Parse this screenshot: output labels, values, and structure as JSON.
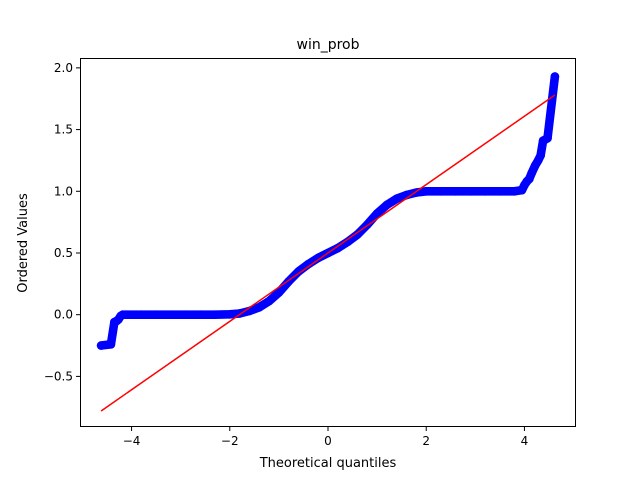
{
  "chart_data": {
    "type": "scatter",
    "title": "win_prob",
    "xlabel": "Theoretical quantiles",
    "ylabel": "Ordered Values",
    "xlim": [
      -5.05,
      5.05
    ],
    "ylim": [
      -0.91,
      2.08
    ],
    "xticks": [
      -4,
      -2,
      0,
      2,
      4
    ],
    "xtick_labels": [
      "−4",
      "−2",
      "0",
      "2",
      "4"
    ],
    "yticks": [
      -0.5,
      0.0,
      0.5,
      1.0,
      1.5,
      2.0
    ],
    "ytick_labels": [
      "−0.5",
      "0.0",
      "0.5",
      "1.0",
      "1.5",
      "2.0"
    ],
    "grid": false,
    "legend": "none",
    "series": [
      {
        "kind": "points",
        "color": "#0000ff",
        "points": [
          [
            -4.62,
            -0.25
          ],
          [
            -4.42,
            -0.24
          ],
          [
            -4.35,
            -0.06
          ],
          [
            -4.3,
            -0.05
          ],
          [
            -4.27,
            -0.04
          ],
          [
            -4.22,
            -0.01
          ],
          [
            -4.18,
            0.0
          ],
          [
            -4.1,
            0.0
          ],
          [
            -3.8,
            0.0
          ],
          [
            -3.5,
            0.0
          ],
          [
            -3.2,
            0.0
          ],
          [
            -2.9,
            0.0
          ],
          [
            -2.6,
            0.0
          ],
          [
            -2.3,
            0.0
          ],
          [
            -2.0,
            0.003
          ],
          [
            -1.8,
            0.01
          ],
          [
            -1.6,
            0.03
          ],
          [
            -1.4,
            0.06
          ],
          [
            -1.2,
            0.11
          ],
          [
            -1.0,
            0.18
          ],
          [
            -0.8,
            0.27
          ],
          [
            -0.6,
            0.35
          ],
          [
            -0.4,
            0.41
          ],
          [
            -0.2,
            0.46
          ],
          [
            0.0,
            0.5
          ],
          [
            0.2,
            0.54
          ],
          [
            0.4,
            0.59
          ],
          [
            0.6,
            0.65
          ],
          [
            0.8,
            0.73
          ],
          [
            1.0,
            0.82
          ],
          [
            1.2,
            0.89
          ],
          [
            1.4,
            0.94
          ],
          [
            1.6,
            0.97
          ],
          [
            1.8,
            0.99
          ],
          [
            2.0,
            1.0
          ],
          [
            2.3,
            1.0
          ],
          [
            2.6,
            1.0
          ],
          [
            2.9,
            1.0
          ],
          [
            3.2,
            1.0
          ],
          [
            3.5,
            1.0
          ],
          [
            3.8,
            1.0
          ],
          [
            3.95,
            1.01
          ],
          [
            4.0,
            1.05
          ],
          [
            4.05,
            1.08
          ],
          [
            4.1,
            1.1
          ],
          [
            4.15,
            1.15
          ],
          [
            4.22,
            1.21
          ],
          [
            4.28,
            1.25
          ],
          [
            4.33,
            1.29
          ],
          [
            4.38,
            1.41
          ],
          [
            4.47,
            1.43
          ],
          [
            4.62,
            1.93
          ]
        ]
      },
      {
        "kind": "fit-line",
        "color": "#ff0000",
        "points": [
          [
            -4.62,
            -0.78
          ],
          [
            4.62,
            1.78
          ]
        ]
      }
    ]
  }
}
